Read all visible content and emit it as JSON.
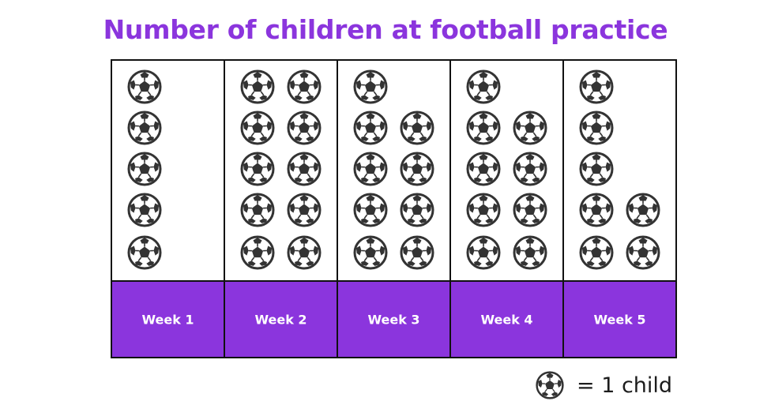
{
  "chart_data": {
    "type": "pictogram",
    "title": "Number of children at football practice",
    "categories": [
      "Week 1",
      "Week 2",
      "Week 3",
      "Week 4",
      "Week 5"
    ],
    "values": [
      5,
      10,
      9,
      9,
      7
    ],
    "icon": "football-icon",
    "key": {
      "icon": "football-icon",
      "value": 1,
      "label": "= 1 child"
    }
  },
  "colors": {
    "title": "#8b35dd",
    "label_band": "#8b35dd",
    "label_text": "#ffffff",
    "border": "#111111",
    "ball_dark": "#3a3a3a"
  }
}
